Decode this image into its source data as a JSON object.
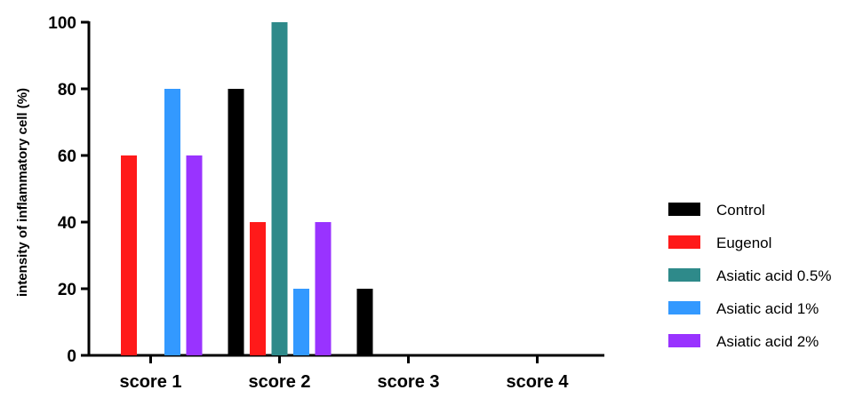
{
  "chart_data": {
    "type": "bar",
    "title": "",
    "xlabel": "",
    "ylabel": "intensity of inflammatory cell (%)",
    "ylim": [
      0,
      100
    ],
    "yticks": [
      0,
      20,
      40,
      60,
      80,
      100
    ],
    "categories": [
      "score 1",
      "score 2",
      "score 3",
      "score 4"
    ],
    "series": [
      {
        "name": "Control",
        "color": "#000000",
        "values": [
          0,
          80,
          20,
          0
        ]
      },
      {
        "name": "Eugenol",
        "color": "#ff1a1a",
        "values": [
          60,
          40,
          0,
          0
        ]
      },
      {
        "name": "Asiatic acid 0.5%",
        "color": "#2e8a8a",
        "values": [
          0,
          100,
          0,
          0
        ]
      },
      {
        "name": "Asiatic acid 1%",
        "color": "#3399ff",
        "values": [
          80,
          20,
          0,
          0
        ]
      },
      {
        "name": "Asiatic acid 2%",
        "color": "#9933ff",
        "values": [
          60,
          40,
          0,
          0
        ]
      }
    ],
    "grid": false,
    "legend": "right"
  }
}
